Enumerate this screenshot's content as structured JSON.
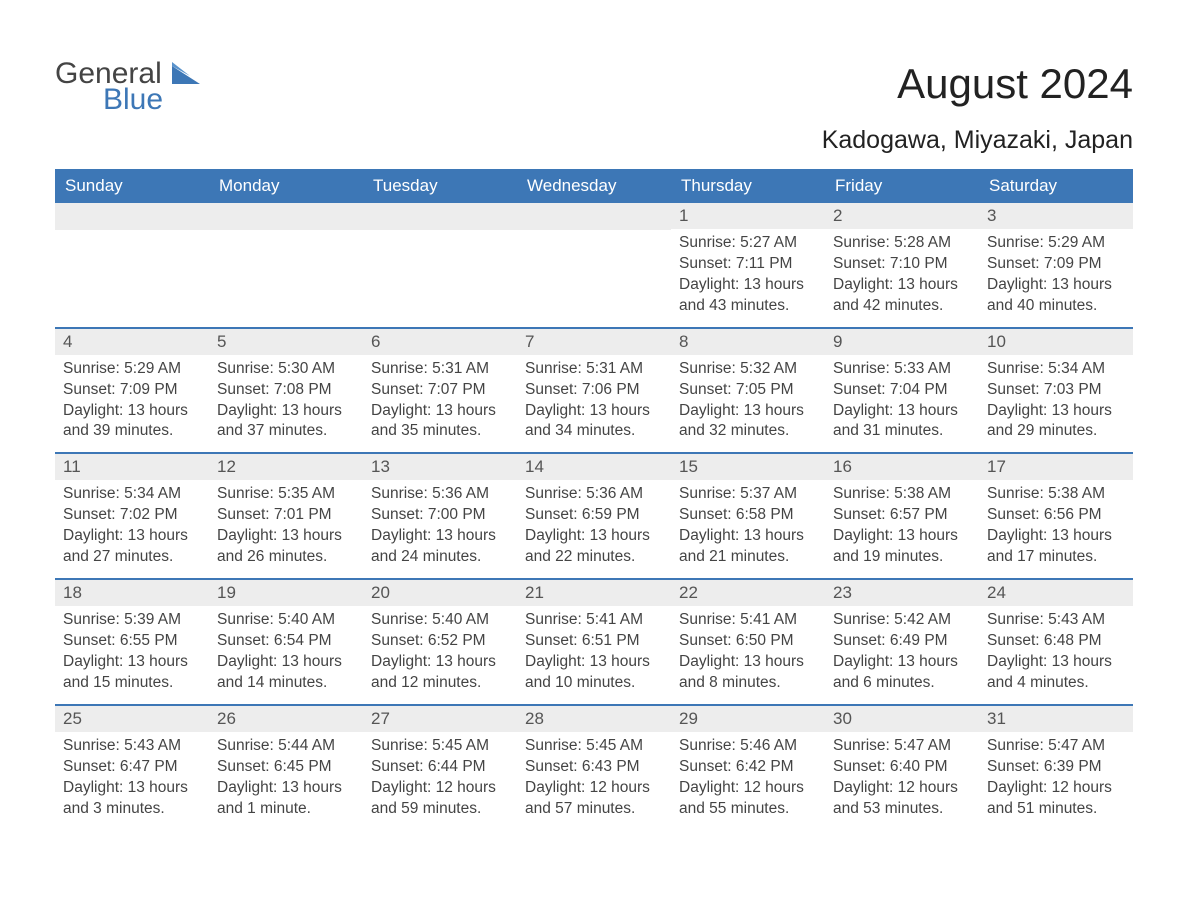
{
  "logo": {
    "text1": "General",
    "text2": "Blue"
  },
  "title": "August 2024",
  "location": "Kadogawa, Miyazaki, Japan",
  "colors": {
    "header_bg": "#3d77b6",
    "header_text": "#ffffff",
    "daynum_bg": "#ededed",
    "week_border": "#3d77b6",
    "body_text": "#444444",
    "title_text": "#222222"
  },
  "dayHeaders": [
    "Sunday",
    "Monday",
    "Tuesday",
    "Wednesday",
    "Thursday",
    "Friday",
    "Saturday"
  ],
  "weeks": [
    [
      null,
      null,
      null,
      null,
      {
        "n": "1",
        "sunrise": "Sunrise: 5:27 AM",
        "sunset": "Sunset: 7:11 PM",
        "daylight": "Daylight: 13 hours and 43 minutes."
      },
      {
        "n": "2",
        "sunrise": "Sunrise: 5:28 AM",
        "sunset": "Sunset: 7:10 PM",
        "daylight": "Daylight: 13 hours and 42 minutes."
      },
      {
        "n": "3",
        "sunrise": "Sunrise: 5:29 AM",
        "sunset": "Sunset: 7:09 PM",
        "daylight": "Daylight: 13 hours and 40 minutes."
      }
    ],
    [
      {
        "n": "4",
        "sunrise": "Sunrise: 5:29 AM",
        "sunset": "Sunset: 7:09 PM",
        "daylight": "Daylight: 13 hours and 39 minutes."
      },
      {
        "n": "5",
        "sunrise": "Sunrise: 5:30 AM",
        "sunset": "Sunset: 7:08 PM",
        "daylight": "Daylight: 13 hours and 37 minutes."
      },
      {
        "n": "6",
        "sunrise": "Sunrise: 5:31 AM",
        "sunset": "Sunset: 7:07 PM",
        "daylight": "Daylight: 13 hours and 35 minutes."
      },
      {
        "n": "7",
        "sunrise": "Sunrise: 5:31 AM",
        "sunset": "Sunset: 7:06 PM",
        "daylight": "Daylight: 13 hours and 34 minutes."
      },
      {
        "n": "8",
        "sunrise": "Sunrise: 5:32 AM",
        "sunset": "Sunset: 7:05 PM",
        "daylight": "Daylight: 13 hours and 32 minutes."
      },
      {
        "n": "9",
        "sunrise": "Sunrise: 5:33 AM",
        "sunset": "Sunset: 7:04 PM",
        "daylight": "Daylight: 13 hours and 31 minutes."
      },
      {
        "n": "10",
        "sunrise": "Sunrise: 5:34 AM",
        "sunset": "Sunset: 7:03 PM",
        "daylight": "Daylight: 13 hours and 29 minutes."
      }
    ],
    [
      {
        "n": "11",
        "sunrise": "Sunrise: 5:34 AM",
        "sunset": "Sunset: 7:02 PM",
        "daylight": "Daylight: 13 hours and 27 minutes."
      },
      {
        "n": "12",
        "sunrise": "Sunrise: 5:35 AM",
        "sunset": "Sunset: 7:01 PM",
        "daylight": "Daylight: 13 hours and 26 minutes."
      },
      {
        "n": "13",
        "sunrise": "Sunrise: 5:36 AM",
        "sunset": "Sunset: 7:00 PM",
        "daylight": "Daylight: 13 hours and 24 minutes."
      },
      {
        "n": "14",
        "sunrise": "Sunrise: 5:36 AM",
        "sunset": "Sunset: 6:59 PM",
        "daylight": "Daylight: 13 hours and 22 minutes."
      },
      {
        "n": "15",
        "sunrise": "Sunrise: 5:37 AM",
        "sunset": "Sunset: 6:58 PM",
        "daylight": "Daylight: 13 hours and 21 minutes."
      },
      {
        "n": "16",
        "sunrise": "Sunrise: 5:38 AM",
        "sunset": "Sunset: 6:57 PM",
        "daylight": "Daylight: 13 hours and 19 minutes."
      },
      {
        "n": "17",
        "sunrise": "Sunrise: 5:38 AM",
        "sunset": "Sunset: 6:56 PM",
        "daylight": "Daylight: 13 hours and 17 minutes."
      }
    ],
    [
      {
        "n": "18",
        "sunrise": "Sunrise: 5:39 AM",
        "sunset": "Sunset: 6:55 PM",
        "daylight": "Daylight: 13 hours and 15 minutes."
      },
      {
        "n": "19",
        "sunrise": "Sunrise: 5:40 AM",
        "sunset": "Sunset: 6:54 PM",
        "daylight": "Daylight: 13 hours and 14 minutes."
      },
      {
        "n": "20",
        "sunrise": "Sunrise: 5:40 AM",
        "sunset": "Sunset: 6:52 PM",
        "daylight": "Daylight: 13 hours and 12 minutes."
      },
      {
        "n": "21",
        "sunrise": "Sunrise: 5:41 AM",
        "sunset": "Sunset: 6:51 PM",
        "daylight": "Daylight: 13 hours and 10 minutes."
      },
      {
        "n": "22",
        "sunrise": "Sunrise: 5:41 AM",
        "sunset": "Sunset: 6:50 PM",
        "daylight": "Daylight: 13 hours and 8 minutes."
      },
      {
        "n": "23",
        "sunrise": "Sunrise: 5:42 AM",
        "sunset": "Sunset: 6:49 PM",
        "daylight": "Daylight: 13 hours and 6 minutes."
      },
      {
        "n": "24",
        "sunrise": "Sunrise: 5:43 AM",
        "sunset": "Sunset: 6:48 PM",
        "daylight": "Daylight: 13 hours and 4 minutes."
      }
    ],
    [
      {
        "n": "25",
        "sunrise": "Sunrise: 5:43 AM",
        "sunset": "Sunset: 6:47 PM",
        "daylight": "Daylight: 13 hours and 3 minutes."
      },
      {
        "n": "26",
        "sunrise": "Sunrise: 5:44 AM",
        "sunset": "Sunset: 6:45 PM",
        "daylight": "Daylight: 13 hours and 1 minute."
      },
      {
        "n": "27",
        "sunrise": "Sunrise: 5:45 AM",
        "sunset": "Sunset: 6:44 PM",
        "daylight": "Daylight: 12 hours and 59 minutes."
      },
      {
        "n": "28",
        "sunrise": "Sunrise: 5:45 AM",
        "sunset": "Sunset: 6:43 PM",
        "daylight": "Daylight: 12 hours and 57 minutes."
      },
      {
        "n": "29",
        "sunrise": "Sunrise: 5:46 AM",
        "sunset": "Sunset: 6:42 PM",
        "daylight": "Daylight: 12 hours and 55 minutes."
      },
      {
        "n": "30",
        "sunrise": "Sunrise: 5:47 AM",
        "sunset": "Sunset: 6:40 PM",
        "daylight": "Daylight: 12 hours and 53 minutes."
      },
      {
        "n": "31",
        "sunrise": "Sunrise: 5:47 AM",
        "sunset": "Sunset: 6:39 PM",
        "daylight": "Daylight: 12 hours and 51 minutes."
      }
    ]
  ]
}
